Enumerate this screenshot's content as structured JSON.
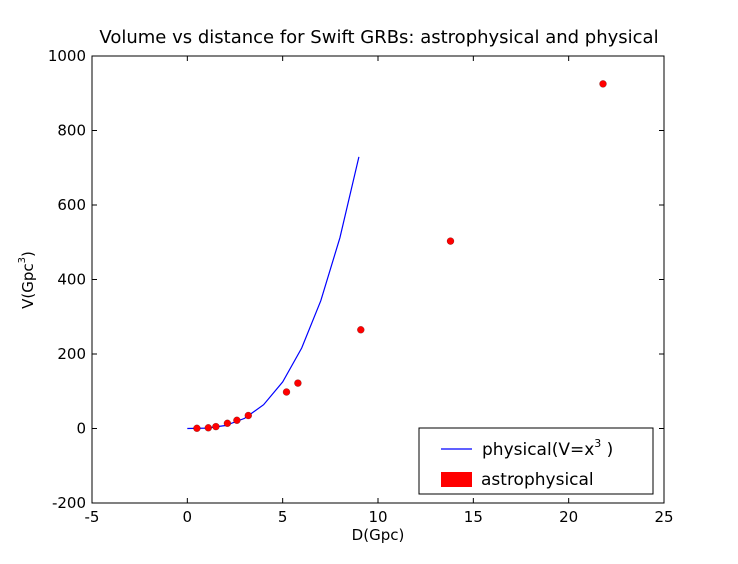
{
  "chart_data": {
    "type": "scatter",
    "title": "Volume vs distance for Swift GRBs: astrophysical and physical",
    "xlabel": "D(Gpc)",
    "ylabel": "V(Gpc",
    "ylabel_superscript": "3",
    "ylabel_suffix": ")",
    "xlim": [
      -5,
      25
    ],
    "ylim": [
      -200,
      1000
    ],
    "x_ticks": [
      -5,
      0,
      5,
      10,
      15,
      20,
      25
    ],
    "y_ticks": [
      -200,
      0,
      200,
      400,
      600,
      800,
      1000
    ],
    "grid": false,
    "legend_position": "lower-right",
    "series": [
      {
        "name": "physical(V=x",
        "name_superscript": "3",
        "name_suffix": " )",
        "kind": "line",
        "color": "#0000ff",
        "points": [
          [
            0,
            0
          ],
          [
            1,
            1
          ],
          [
            2,
            8
          ],
          [
            3,
            27
          ],
          [
            4,
            64
          ],
          [
            5,
            125
          ],
          [
            6,
            216
          ],
          [
            7,
            343
          ],
          [
            8,
            512
          ],
          [
            9,
            729
          ]
        ]
      },
      {
        "name": "astrophysical",
        "kind": "scatter",
        "color": "#ff0000",
        "points": [
          [
            0.5,
            0.5
          ],
          [
            1.1,
            2
          ],
          [
            1.5,
            5
          ],
          [
            2.1,
            14
          ],
          [
            2.6,
            22
          ],
          [
            3.2,
            35
          ],
          [
            5.2,
            98
          ],
          [
            5.8,
            122
          ],
          [
            9.1,
            265
          ],
          [
            13.8,
            503
          ],
          [
            21.8,
            925
          ]
        ]
      }
    ]
  }
}
